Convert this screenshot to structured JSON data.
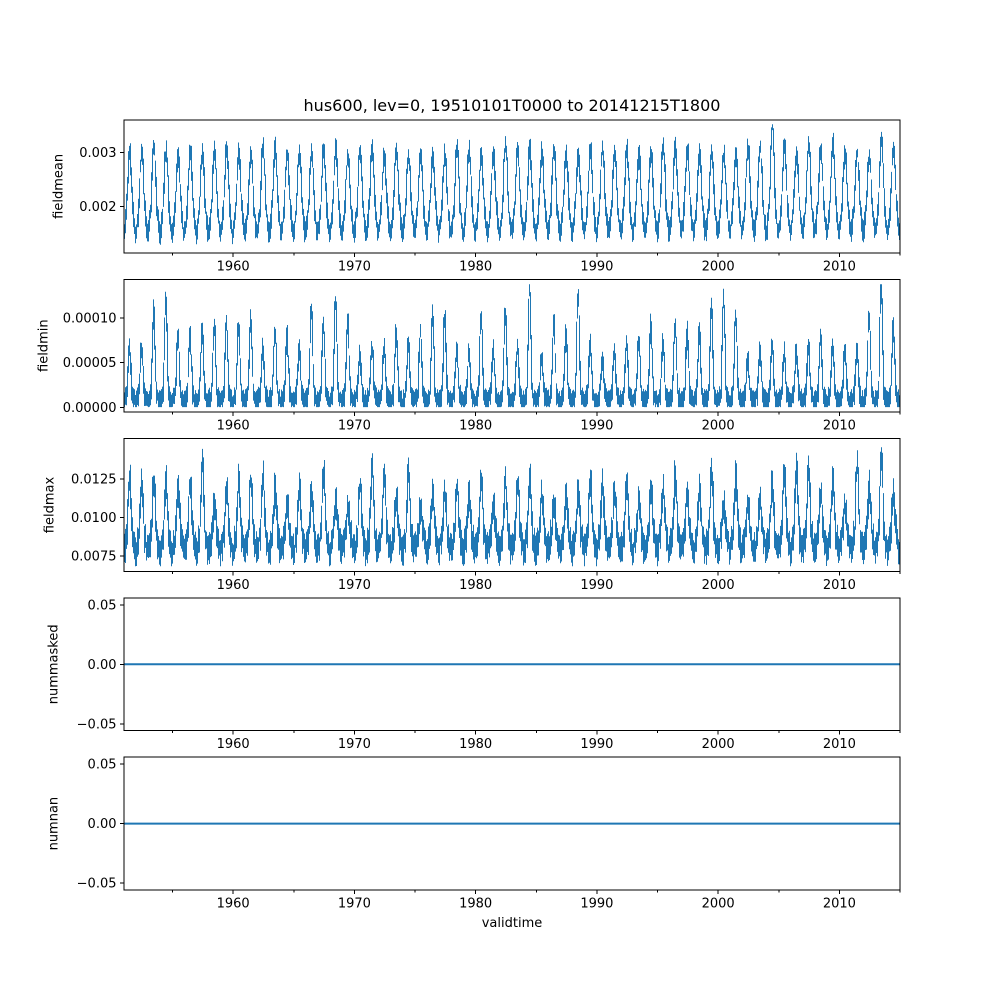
{
  "figure": {
    "title": "hus600, lev=0, 19510101T0000 to 20141215T1800",
    "xlabel": "validtime",
    "background": "#ffffff",
    "line_color": "#1f77b4",
    "axis_color": "#000000",
    "text_color": "#000000"
  },
  "chart_data": {
    "type": "line",
    "title": "hus600, lev=0, 19510101T0000 to 20141215T1800",
    "xlabel": "validtime",
    "grid": false,
    "legend": false,
    "x_axis": {
      "start": "19510101T0000",
      "end": "20141215T1800",
      "range_years": [
        1951.0,
        2015.0
      ],
      "major_ticks": [
        1960,
        1970,
        1980,
        1990,
        2000,
        2010
      ],
      "major_tick_labels": [
        "1960",
        "1970",
        "1980",
        "1990",
        "2000",
        "2010"
      ],
      "minor_ticks": [
        1955,
        1965,
        1975,
        1985,
        1995,
        2005,
        2015
      ]
    },
    "subplots": [
      {
        "name": "fieldmean",
        "ylabel": "fieldmean",
        "ylim": [
          0.00115,
          0.0036
        ],
        "yticks": [
          {
            "value": 0.002,
            "label": "0.002"
          },
          {
            "value": 0.003,
            "label": "0.003"
          }
        ],
        "series": {
          "kind": "dense_band",
          "stats": {
            "annual_cycle": true,
            "typical_trough_range": [
              0.0013,
              0.0017
            ],
            "typical_peak_range": [
              0.0028,
              0.0033
            ],
            "overall_min": 0.00128,
            "overall_max": 0.00349,
            "notable_peaks": [
              {
                "year": 2004,
                "value": 0.0035
              }
            ]
          },
          "gen": {
            "seed": 42,
            "base": 0.00196,
            "trend": 5e-05,
            "phase": 0.22,
            "amp_up": 0.00115,
            "peak_pow": 1.2,
            "amp_down": 0.00046,
            "trough_pow": 1.3,
            "noise": 0.00012,
            "wiggle": 8e-05,
            "wiggle_freq": 8,
            "amp_lo": 0.82,
            "amp_hi": 1.02,
            "boosts": {
              "2004": 1.32,
              "2013": 1.1
            },
            "clip": [
              0.00128,
              0.00351
            ]
          }
        }
      },
      {
        "name": "fieldmin",
        "ylabel": "fieldmin",
        "ylim": [
          -5.1e-06,
          0.0001432
        ],
        "yticks": [
          {
            "value": 0.0,
            "label": "0.00000"
          },
          {
            "value": 5e-05,
            "label": "0.00005"
          },
          {
            "value": 0.0001,
            "label": "0.00010"
          }
        ],
        "series": {
          "kind": "dense_band",
          "stats": {
            "annual_cycle": true,
            "typical_trough_range": [
              2e-06,
              3e-05
            ],
            "typical_peak_range": [
              5e-05,
              0.000125
            ],
            "overall_min": 1.2e-06,
            "overall_max": 0.000137,
            "notable_peaks": [
              {
                "year": 1984,
                "value": 0.00012
              },
              {
                "year": 1988,
                "value": 0.000125
              },
              {
                "year": 2013,
                "value": 0.000137
              }
            ]
          },
          "gen": {
            "seed": 1337,
            "base": 1.4e-05,
            "trend": 0,
            "phase": 0.2,
            "amp_up": 8.5e-05,
            "peak_pow": 2,
            "amp_down": 7e-06,
            "trough_pow": 1,
            "noise": 8.5e-06,
            "wiggle": 4e-06,
            "wiggle_freq": 7,
            "amp_lo": 0.45,
            "amp_hi": 1.3,
            "boosts": {
              "1954": 1.25,
              "1984": 1.42,
              "1988": 1.32,
              "2013": 1.44
            },
            "clip": [
              1.2e-06,
              0.000137
            ]
          }
        }
      },
      {
        "name": "fieldmax",
        "ylabel": "fieldmax",
        "ylim": [
          0.0065,
          0.01512
        ],
        "yticks": [
          {
            "value": 0.0075,
            "label": "0.0075"
          },
          {
            "value": 0.01,
            "label": "0.0100"
          },
          {
            "value": 0.0125,
            "label": "0.0125"
          }
        ],
        "series": {
          "kind": "dense_band",
          "stats": {
            "annual_cycle": true,
            "typical_trough_range": [
              0.0069,
              0.0085
            ],
            "typical_peak_range": [
              0.011,
              0.0135
            ],
            "overall_min": 0.00688,
            "overall_max": 0.0145,
            "notable_peaks": [
              {
                "year": 1957,
                "value": 0.0136
              },
              {
                "year": 2013,
                "value": 0.0144
              }
            ]
          },
          "gen": {
            "seed": 2024,
            "base": 0.00875,
            "trend": 0.0001,
            "phase": 0.22,
            "amp_up": 0.004,
            "peak_pow": 1.8,
            "amp_down": 0.0009,
            "trough_pow": 1.2,
            "noise": 0.0007,
            "wiggle": 0.0004,
            "wiggle_freq": 6,
            "amp_lo": 0.45,
            "amp_hi": 1.12,
            "boosts": {
              "1957": 1.2,
              "2011": 1.2,
              "2013": 1.32
            },
            "clip": [
              0.00688,
              0.01452
            ]
          }
        }
      },
      {
        "name": "nummasked",
        "ylabel": "nummasked",
        "ylim": [
          -0.0558,
          0.0558
        ],
        "yticks": [
          {
            "value": -0.05,
            "label": "−0.05"
          },
          {
            "value": 0.0,
            "label": "0.00"
          },
          {
            "value": 0.05,
            "label": "0.05"
          }
        ],
        "series": {
          "kind": "constant",
          "value": 0.0,
          "stats": {
            "constant": 0.0,
            "overall_min": 0.0,
            "overall_max": 0.0
          }
        }
      },
      {
        "name": "numnan",
        "ylabel": "numnan",
        "ylim": [
          -0.0558,
          0.0558
        ],
        "yticks": [
          {
            "value": -0.05,
            "label": "−0.05"
          },
          {
            "value": 0.0,
            "label": "0.00"
          },
          {
            "value": 0.05,
            "label": "0.05"
          }
        ],
        "series": {
          "kind": "constant",
          "value": 0.0,
          "stats": {
            "constant": 0.0,
            "overall_min": 0.0,
            "overall_max": 0.0
          }
        }
      }
    ]
  }
}
